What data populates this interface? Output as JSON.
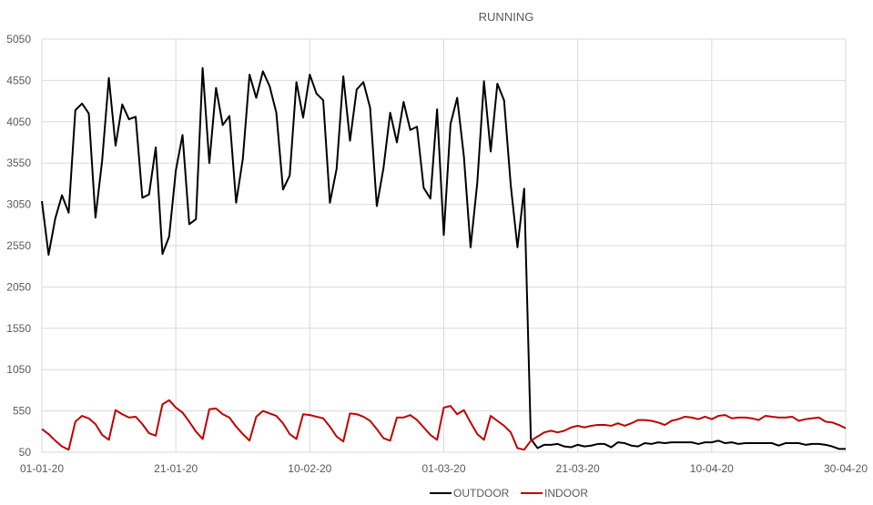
{
  "chart_data": {
    "type": "line",
    "title": "RUNNING",
    "xlabel": "",
    "ylabel": "",
    "x_start": "01-01-20",
    "x_end": "30-04-20",
    "xlim": [
      "01-01-20",
      "30-04-20"
    ],
    "ylim": [
      50,
      5050
    ],
    "y_ticks": [
      50,
      550,
      1050,
      1550,
      2050,
      2550,
      3050,
      3550,
      4050,
      4550,
      5050
    ],
    "x_tick_labels": [
      "01-01-20",
      "21-01-20",
      "10-02-20",
      "01-03-20",
      "21-03-20",
      "10-04-20",
      "30-04-20"
    ],
    "grid": true,
    "legend_position": "bottom",
    "colors": {
      "outdoor": "#000000",
      "indoor": "#c00000",
      "grid": "#d9d9d9",
      "text": "#595959"
    },
    "series": [
      {
        "name": "OUTDOOR",
        "values": [
          3090,
          2440,
          2880,
          3160,
          2950,
          4190,
          4270,
          4150,
          2890,
          3580,
          4580,
          3760,
          4260,
          4080,
          4110,
          3130,
          3170,
          3740,
          2450,
          2660,
          3460,
          3890,
          2810,
          2870,
          4700,
          3550,
          4460,
          4010,
          4120,
          3070,
          3600,
          4620,
          4340,
          4660,
          4480,
          4160,
          3230,
          3400,
          4530,
          4100,
          4620,
          4390,
          4310,
          3070,
          3480,
          4600,
          3820,
          4440,
          4530,
          4220,
          3030,
          3490,
          4160,
          3800,
          4290,
          3950,
          3990,
          3250,
          3120,
          4200,
          2680,
          4020,
          4340,
          3630,
          2530,
          3310,
          4540,
          3690,
          4510,
          4310,
          3280,
          2530,
          3240,
          210,
          100,
          140,
          140,
          150,
          120,
          110,
          140,
          120,
          130,
          150,
          150,
          110,
          170,
          160,
          130,
          120,
          160,
          150,
          170,
          160,
          170,
          170,
          170,
          170,
          150,
          170,
          170,
          190,
          160,
          170,
          150,
          160,
          160,
          160,
          160,
          160,
          130,
          160,
          160,
          160,
          140,
          150,
          150,
          140,
          120,
          90,
          90
        ],
        "values_note": ""
      },
      {
        "name": "INDOOR",
        "values": [
          330,
          270,
          190,
          120,
          80,
          420,
          490,
          460,
          390,
          260,
          200,
          560,
          510,
          470,
          480,
          390,
          280,
          250,
          630,
          680,
          590,
          530,
          420,
          300,
          210,
          570,
          580,
          510,
          470,
          360,
          270,
          190,
          480,
          550,
          520,
          490,
          400,
          270,
          210,
          510,
          500,
          480,
          460,
          360,
          240,
          180,
          520,
          510,
          480,
          430,
          330,
          220,
          190,
          470,
          470,
          500,
          440,
          350,
          260,
          200,
          590,
          610,
          510,
          560,
          410,
          270,
          200,
          490,
          430,
          370,
          290,
          100,
          80,
          190,
          240,
          290,
          310,
          290,
          310,
          350,
          370,
          350,
          370,
          380,
          380,
          370,
          400,
          370,
          400,
          440,
          440,
          430,
          410,
          380,
          430,
          450,
          480,
          470,
          450,
          480,
          450,
          490,
          500,
          460,
          470,
          470,
          460,
          440,
          490,
          480,
          470,
          470,
          480,
          430,
          450,
          460,
          470,
          420,
          410,
          380,
          340
        ]
      }
    ]
  }
}
